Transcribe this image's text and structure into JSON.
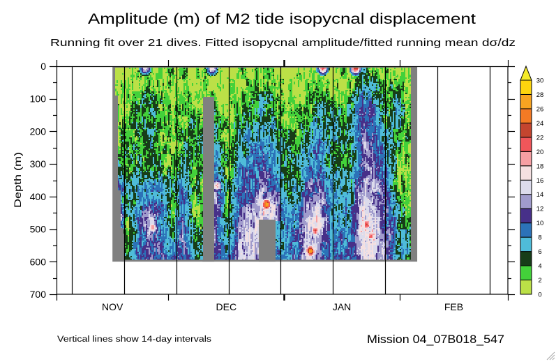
{
  "chart_data": {
    "type": "heatmap",
    "title": "Amplitude (m) of M2 tide isopycnal displacement",
    "subtitle": "Running fit over 21 dives. Fitted isopycnal amplitude/fitted running mean dσ/dz",
    "xlabel": "",
    "ylabel": "Depth (m)",
    "xlim_days_from_nov1": [
      0,
      121
    ],
    "ylim": [
      0,
      700
    ],
    "y_inverted": true,
    "yticks": [
      0,
      100,
      200,
      300,
      400,
      500,
      600,
      700
    ],
    "yminor_step": 50,
    "month_ticks_days": [
      0,
      30,
      61,
      92
    ],
    "year_tick_day": 61,
    "month_labels": [
      {
        "label": "NOV",
        "start_day": 0,
        "end_day": 30
      },
      {
        "label": "DEC",
        "start_day": 30,
        "end_day": 61
      },
      {
        "label": "JAN",
        "start_day": 61,
        "end_day": 92
      },
      {
        "label": "FEB",
        "start_day": 92,
        "end_day": 121
      }
    ],
    "interval_lines": {
      "first_day": 4.1,
      "interval_days": 14
    },
    "gridlines": false,
    "colorbar": {
      "position": "right",
      "extend": "max",
      "levels": [
        0,
        2,
        4,
        6,
        8,
        10,
        12,
        14,
        16,
        18,
        20,
        22,
        24,
        26,
        28,
        30
      ],
      "colors": [
        "#bbe047",
        "#43d13a",
        "#173d18",
        "#4fbcd9",
        "#2c72b8",
        "#473089",
        "#a09bcc",
        "#dcdbec",
        "#f5e0e1",
        "#f69fa3",
        "#f0565a",
        "#c4452f",
        "#f47a24",
        "#f7a421",
        "#fdd50e"
      ],
      "over_color": "#f5ec2a"
    },
    "missing_color": "#808080",
    "coverage": {
      "start_day": 15.0,
      "end_day": 96.7,
      "max_depth": 600
    },
    "data_extent": {
      "end_day": 95.0,
      "top_depth": 4,
      "bottom_depth": 594,
      "left_edge": [
        [
          0,
          15.7
        ],
        [
          90,
          16.3
        ],
        [
          380,
          17.2
        ],
        [
          495,
          18.0
        ],
        [
          515,
          18.5
        ]
      ]
    },
    "gaps": [
      {
        "start_day": 39.1,
        "end_day": 42.3,
        "top_depth": 96,
        "bottom_depth": 600
      },
      {
        "start_day": 54.2,
        "end_day": 58.7,
        "top_depth": 473,
        "bottom_depth": 600
      }
    ],
    "field": {
      "depths": [
        25,
        75,
        125,
        175,
        225,
        275,
        325,
        375,
        425,
        475,
        525,
        575
      ],
      "x_days": [
        16,
        19,
        22,
        25,
        28,
        31,
        34,
        37,
        40,
        43,
        46,
        49,
        52,
        55,
        58.5,
        61.5,
        64.5,
        67.5,
        70.5,
        73.5,
        76.5,
        79.5,
        82.5,
        85.5,
        88.5,
        91.5,
        94.5
      ],
      "values": [
        [
          1,
          1,
          1,
          1,
          3,
          6,
          7,
          12,
          10,
          14,
          9,
          10
        ],
        [
          1,
          1,
          2,
          2,
          3,
          4,
          3,
          5,
          4,
          3,
          4,
          5
        ],
        [
          2,
          3,
          5,
          5,
          5,
          4,
          4,
          7,
          7,
          9,
          8,
          9
        ],
        [
          2,
          4,
          5,
          6,
          7,
          5,
          7,
          8,
          10,
          15,
          13,
          10
        ],
        [
          1,
          2,
          3,
          3,
          3,
          4,
          5,
          7,
          8,
          9,
          10,
          10
        ],
        [
          2,
          1,
          2,
          2,
          1,
          2,
          3,
          4,
          3,
          4,
          6,
          9
        ],
        [
          2,
          2,
          3,
          4,
          4,
          5,
          7,
          9,
          10,
          11,
          12,
          11
        ],
        [
          1,
          1,
          2,
          4,
          5,
          4,
          3,
          3,
          4,
          3,
          5,
          6
        ],
        [
          2,
          2,
          null,
          null,
          null,
          null,
          null,
          null,
          null,
          null,
          null,
          null
        ],
        [
          1,
          1,
          3,
          4,
          5,
          7,
          9,
          12,
          13,
          12,
          11,
          10
        ],
        [
          1,
          1,
          1,
          2,
          2,
          2,
          2,
          3,
          3,
          4,
          6,
          8
        ],
        [
          2,
          2,
          4,
          5,
          5,
          7,
          8,
          9,
          10,
          12,
          13,
          14
        ],
        [
          2,
          3,
          4,
          5,
          7,
          8,
          9,
          10,
          12,
          14,
          15,
          14
        ],
        [
          2,
          4,
          6,
          7,
          8,
          9,
          10,
          12,
          15,
          null,
          null,
          null
        ],
        [
          2,
          3,
          5,
          6,
          7,
          8,
          8,
          12,
          15,
          null,
          null,
          null
        ],
        [
          1,
          1,
          2,
          2,
          4,
          5,
          5,
          5,
          6,
          7,
          7,
          8
        ],
        [
          1,
          1,
          2,
          3,
          4,
          5,
          5,
          6,
          7,
          8,
          9,
          10
        ],
        [
          1,
          2,
          4,
          5,
          6,
          8,
          9,
          11,
          13,
          16,
          15,
          16
        ],
        [
          1,
          3,
          6,
          7,
          8,
          9,
          10,
          12,
          14,
          17,
          13,
          12
        ],
        [
          1,
          2,
          5,
          6,
          6,
          5,
          6,
          7,
          8,
          8,
          8,
          8
        ],
        [
          2,
          2,
          3,
          5,
          5,
          4,
          5,
          6,
          7,
          8,
          9,
          10
        ],
        [
          2,
          3,
          6,
          7,
          6,
          5,
          6,
          7,
          8,
          9,
          10,
          9
        ],
        [
          6,
          8,
          10,
          12,
          13,
          12,
          12,
          14,
          15,
          17,
          16,
          15
        ],
        [
          3,
          6,
          8,
          10,
          11,
          11,
          12,
          13,
          15,
          16,
          15,
          14
        ],
        [
          2,
          3,
          4,
          5,
          6,
          7,
          8,
          9,
          10,
          11,
          13,
          13
        ],
        [
          2,
          4,
          6,
          6,
          5,
          3,
          2,
          3,
          6,
          7,
          7,
          6
        ],
        [
          1,
          1,
          3,
          4,
          3,
          2,
          1,
          2,
          3,
          4,
          5,
          5
        ]
      ]
    },
    "peaks": [
      {
        "day": 25.8,
        "depth": 495,
        "value": 20
      },
      {
        "day": 16.8,
        "depth": 462,
        "value": 17
      },
      {
        "day": 43.0,
        "depth": 367,
        "value": 19
      },
      {
        "day": 56.3,
        "depth": 424,
        "value": 28
      },
      {
        "day": 69.4,
        "depth": 505,
        "value": 22
      },
      {
        "day": 68.1,
        "depth": 567,
        "value": 27
      },
      {
        "day": 83.2,
        "depth": 485,
        "value": 22
      },
      {
        "day": 84.2,
        "depth": 520,
        "value": 21
      },
      {
        "day": 80.2,
        "depth": 5,
        "value": 24
      },
      {
        "day": 71.4,
        "depth": 5,
        "value": 21
      },
      {
        "day": 41.7,
        "depth": 5,
        "value": 18
      },
      {
        "day": 23.8,
        "depth": 6,
        "value": 16
      }
    ]
  },
  "footer": {
    "note": "Vertical lines show 14-day intervals",
    "mission": "Mission 04_07B018_547"
  },
  "window": {
    "resize_grip_icon": "resize-grip-icon"
  }
}
